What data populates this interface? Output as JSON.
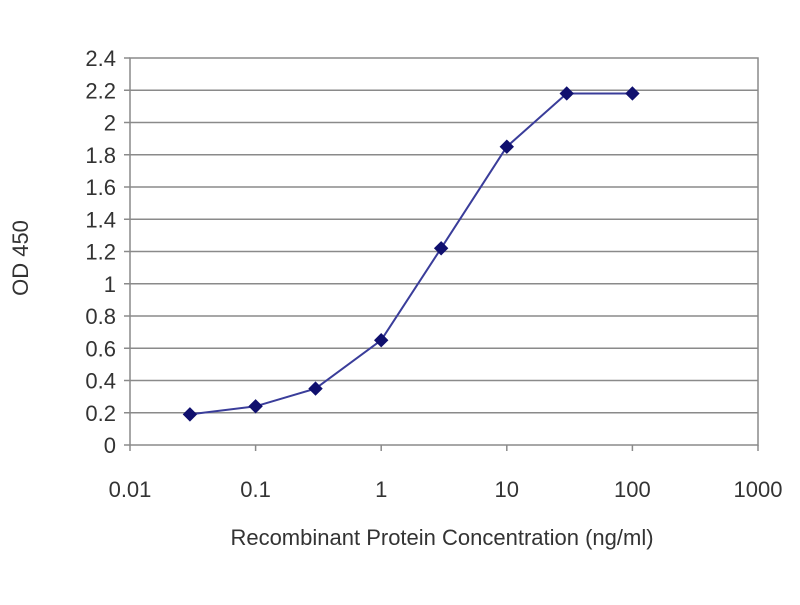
{
  "chart_data": {
    "type": "line",
    "title": "",
    "xlabel": "Recombinant Protein Concentration (ng/ml)",
    "ylabel": "OD 450",
    "x_scale": "log",
    "xlim": [
      0.01,
      1000
    ],
    "ylim": [
      0,
      2.4
    ],
    "x_ticks": [
      "0.01",
      "0.1",
      "1",
      "10",
      "100",
      "1000"
    ],
    "y_ticks": [
      "0",
      "0.2",
      "0.4",
      "0.6",
      "0.8",
      "1",
      "1.2",
      "1.4",
      "1.6",
      "1.8",
      "2",
      "2.2",
      "2.4"
    ],
    "grid": "horizontal",
    "legend": "none",
    "series": [
      {
        "x": [
          0.03,
          0.1,
          0.3,
          1,
          3,
          10,
          30,
          100
        ],
        "y": [
          0.19,
          0.24,
          0.35,
          0.65,
          1.22,
          1.85,
          2.18,
          2.18
        ],
        "color": "#3a3d9a",
        "marker_color": "#10106e"
      }
    ]
  }
}
